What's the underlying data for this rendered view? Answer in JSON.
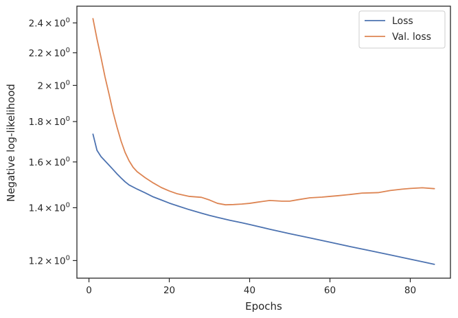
{
  "chart_data": {
    "type": "line",
    "xlabel": "Epochs",
    "ylabel": "Negative log-likelihood",
    "xlim": [
      -3,
      90
    ],
    "ylim": [
      1.14,
      2.52
    ],
    "yscale": "log",
    "grid": false,
    "legend_position": "top-right",
    "x_ticks": [
      0,
      20,
      40,
      60,
      80
    ],
    "x_tick_labels": [
      "0",
      "20",
      "40",
      "60",
      "80"
    ],
    "y_ticks": [
      1.2,
      1.4,
      1.6,
      1.8,
      2.0,
      2.2,
      2.4
    ],
    "y_tick_mantissas": [
      "1.2",
      "1.4",
      "1.6",
      "1.8",
      "2",
      "2.2",
      "2.4"
    ],
    "y_tick_times": "×",
    "y_tick_base": "10",
    "y_tick_exponent": "0",
    "series": [
      {
        "name": "Loss",
        "color": "#4c72b0",
        "x": [
          1,
          2,
          3,
          4,
          5,
          6,
          7,
          8,
          9,
          10,
          12,
          14,
          16,
          18,
          20,
          22,
          25,
          28,
          30,
          32,
          35,
          38,
          40,
          45,
          50,
          55,
          60,
          65,
          70,
          75,
          80,
          86
        ],
        "y": [
          1.735,
          1.655,
          1.625,
          1.605,
          1.585,
          1.565,
          1.545,
          1.527,
          1.51,
          1.496,
          1.478,
          1.462,
          1.445,
          1.432,
          1.419,
          1.408,
          1.392,
          1.378,
          1.369,
          1.361,
          1.35,
          1.34,
          1.333,
          1.315,
          1.298,
          1.282,
          1.266,
          1.25,
          1.235,
          1.22,
          1.205,
          1.187
        ]
      },
      {
        "name": "Val. loss",
        "color": "#dd8452",
        "x": [
          1,
          2,
          3,
          4,
          5,
          6,
          7,
          8,
          9,
          10,
          11,
          12,
          14,
          16,
          18,
          20,
          22,
          25,
          28,
          30,
          32,
          34,
          36,
          38,
          40,
          42,
          45,
          48,
          50,
          52,
          55,
          58,
          60,
          62,
          65,
          68,
          70,
          72,
          75,
          78,
          80,
          83,
          86
        ],
        "y": [
          2.43,
          2.29,
          2.17,
          2.05,
          1.95,
          1.85,
          1.77,
          1.7,
          1.645,
          1.605,
          1.575,
          1.555,
          1.528,
          1.505,
          1.485,
          1.47,
          1.458,
          1.447,
          1.443,
          1.432,
          1.418,
          1.412,
          1.413,
          1.415,
          1.418,
          1.423,
          1.43,
          1.427,
          1.427,
          1.433,
          1.441,
          1.444,
          1.447,
          1.45,
          1.455,
          1.461,
          1.462,
          1.463,
          1.472,
          1.478,
          1.481,
          1.484,
          1.48
        ]
      }
    ]
  }
}
